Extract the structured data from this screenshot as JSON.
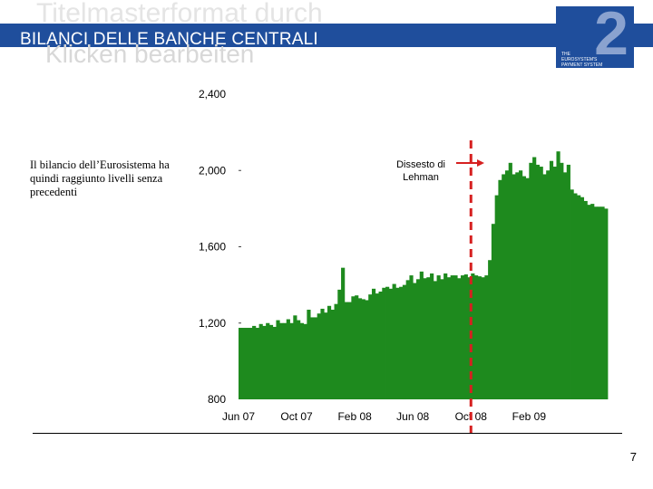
{
  "slide": {
    "title": "BILANCI DELLE BANCHE CENTRALI",
    "placeholder_title": "Titelmasterformat durch Klicken bearbeiten",
    "placeholder_line1": "Titelmasterformat durch",
    "placeholder_line2": "Klicken bearbeiten",
    "note": "Il bilancio dell’Eurosistema ha quindi raggiunto livelli senza precedenti",
    "page_number": "7",
    "logo_number": "2",
    "logo_text": "THE EUROSYSTEM'S PAYMENT SYSTEM"
  },
  "colors": {
    "title_bar": "#1f4e9c",
    "bars": "#1e8a1e",
    "marker": "#d62020",
    "logo": "#1f4e9c"
  },
  "chart_data": {
    "type": "bar",
    "ylim": [
      800,
      2400
    ],
    "yticks": [
      "800",
      "1,200",
      "1,600",
      "2,000",
      "2,400"
    ],
    "ytick_values": [
      800,
      1200,
      1600,
      2000,
      2400
    ],
    "xtick_labels": [
      "Jun 07",
      "Oct 07",
      "Feb 08",
      "Jun 08",
      "Oct 08",
      "Feb 09"
    ],
    "xtick_index": [
      0,
      17,
      34,
      51,
      68,
      85
    ],
    "values": [
      1175,
      1175,
      1175,
      1175,
      1185,
      1175,
      1195,
      1185,
      1200,
      1190,
      1180,
      1215,
      1200,
      1200,
      1220,
      1200,
      1240,
      1215,
      1200,
      1195,
      1270,
      1230,
      1230,
      1250,
      1275,
      1255,
      1290,
      1270,
      1300,
      1375,
      1490,
      1310,
      1310,
      1340,
      1345,
      1330,
      1325,
      1320,
      1350,
      1380,
      1355,
      1365,
      1385,
      1390,
      1380,
      1405,
      1385,
      1390,
      1400,
      1425,
      1450,
      1410,
      1430,
      1470,
      1435,
      1440,
      1460,
      1420,
      1450,
      1430,
      1460,
      1440,
      1450,
      1450,
      1435,
      1450,
      1455,
      1440,
      1460,
      1450,
      1445,
      1440,
      1450,
      1530,
      1720,
      1870,
      1950,
      1980,
      2000,
      2040,
      1980,
      1990,
      2000,
      1970,
      1960,
      2040,
      2070,
      2030,
      2020,
      1980,
      2000,
      2050,
      2020,
      2100,
      2040,
      1990,
      2030,
      1900,
      1880,
      1870,
      1860,
      1840,
      1820,
      1825,
      1810,
      1810,
      1810,
      1800
    ],
    "annotation": {
      "label_line1": "Dissesto di",
      "label_line2": "Lehman",
      "marker_index": 68
    }
  }
}
